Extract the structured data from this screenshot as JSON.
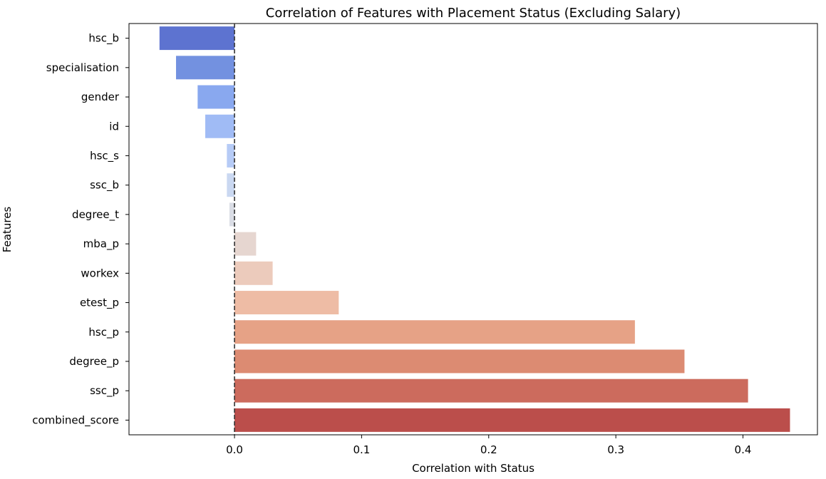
{
  "chart_data": {
    "type": "bar",
    "orientation": "horizontal",
    "title": "Correlation of Features with Placement Status (Excluding Salary)",
    "xlabel": "Correlation with Status",
    "ylabel": "Features",
    "categories": [
      "hsc_b",
      "specialisation",
      "gender",
      "id",
      "hsc_s",
      "ssc_b",
      "degree_t",
      "mba_p",
      "workex",
      "etest_p",
      "hsc_p",
      "degree_p",
      "ssc_p",
      "combined_score"
    ],
    "values": [
      -0.059,
      -0.046,
      -0.029,
      -0.023,
      -0.006,
      -0.006,
      -0.004,
      0.017,
      0.03,
      0.082,
      0.315,
      0.354,
      0.404,
      0.437
    ],
    "colors": [
      "#5d73d0",
      "#7391e0",
      "#89a8ef",
      "#a0bbf5",
      "#b6cbf6",
      "#cad8f1",
      "#dadde5",
      "#e6d6d0",
      "#eccbbc",
      "#eebca5",
      "#e6a286",
      "#dc8b72",
      "#cc6b5d",
      "#bb4e4b"
    ],
    "xlim": [
      -0.083,
      0.4586
    ],
    "xticks": [
      0.0,
      0.1,
      0.2,
      0.3,
      0.4
    ],
    "xtick_labels": [
      "0.0",
      "0.1",
      "0.2",
      "0.3",
      "0.4"
    ],
    "reference_line": {
      "x": 0.0,
      "style": "dashed",
      "color": "#333333"
    },
    "grid": false,
    "legend": "none"
  }
}
